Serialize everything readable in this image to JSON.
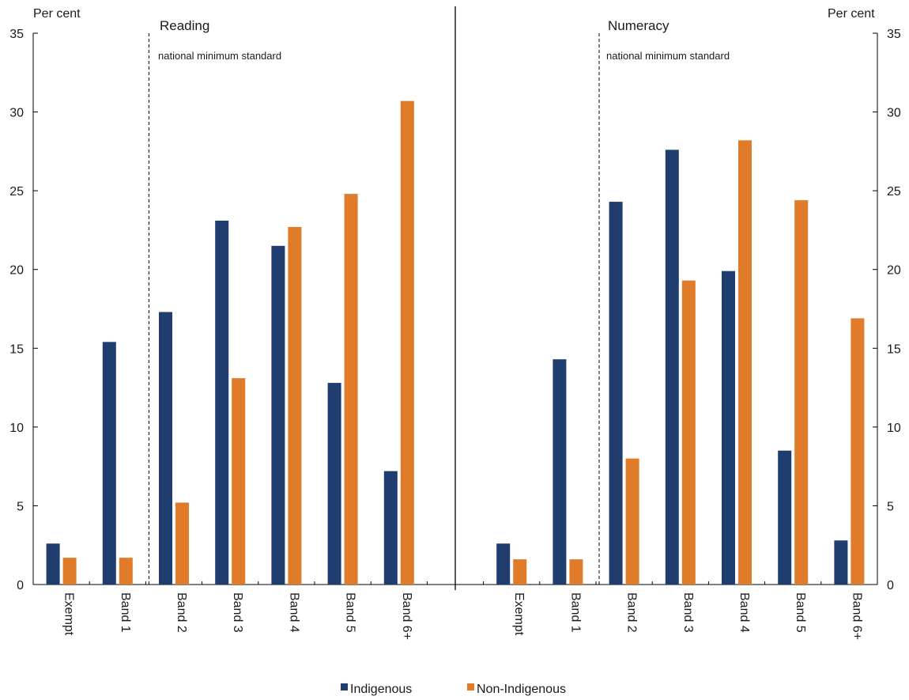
{
  "chart_data": {
    "type": "bar",
    "y_unit_label": "Per cent",
    "ylim": [
      0,
      35
    ],
    "yticks": [
      0,
      5,
      10,
      15,
      20,
      25,
      30,
      35
    ],
    "threshold_note": "national minimum standard",
    "panels": [
      {
        "title": "Reading",
        "categories": [
          "Exempt",
          "Band 1",
          "Band 2",
          "Band 3",
          "Band 4",
          "Band 5",
          "Band 6+"
        ],
        "series": [
          {
            "name": "Indigenous",
            "color": "#1f3d6e",
            "values": [
              2.6,
              15.4,
              17.3,
              23.1,
              21.5,
              12.8,
              7.2
            ]
          },
          {
            "name": "Non-Indigenous",
            "color": "#e07b2a",
            "values": [
              1.7,
              1.7,
              5.2,
              13.1,
              22.7,
              24.8,
              30.7
            ]
          }
        ]
      },
      {
        "title": "Numeracy",
        "categories": [
          "Exempt",
          "Band 1",
          "Band 2",
          "Band 3",
          "Band 4",
          "Band 5",
          "Band 6+"
        ],
        "series": [
          {
            "name": "Indigenous",
            "color": "#1f3d6e",
            "values": [
              2.6,
              14.3,
              24.3,
              27.6,
              19.9,
              8.5,
              2.8
            ]
          },
          {
            "name": "Non-Indigenous",
            "color": "#e07b2a",
            "values": [
              1.6,
              1.6,
              8.0,
              19.3,
              28.2,
              24.4,
              16.9
            ]
          }
        ]
      }
    ],
    "legend": [
      {
        "name": "Indigenous",
        "color": "#1f3d6e"
      },
      {
        "name": "Non-Indigenous",
        "color": "#e07b2a"
      }
    ],
    "legend_position": "bottom-center"
  }
}
